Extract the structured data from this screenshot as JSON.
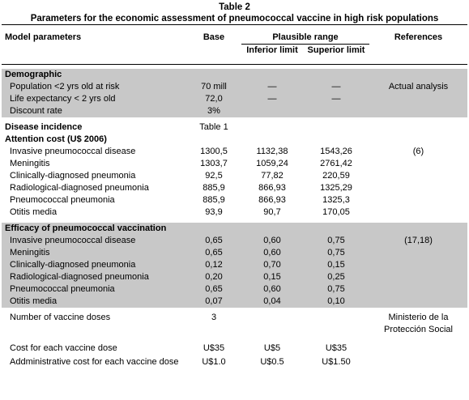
{
  "caption": {
    "number": "Table 2",
    "title": "Parameters for the economic assessment of pneumococcal vaccine in high risk populations"
  },
  "table": {
    "header": [
      "Model parameters",
      "Base",
      "Plausible range",
      "References"
    ],
    "subheader": [
      "Inferior limit",
      "Superior limit"
    ],
    "blocks": [
      {
        "shaded": true,
        "rows": [
          {
            "heading": true,
            "cells": [
              "Demographic",
              null,
              null,
              null,
              null
            ]
          },
          {
            "cells": [
              "Population <2 yrs old at risk",
              "70 mill",
              "—",
              "—",
              "Actual analysis"
            ]
          },
          {
            "cells": [
              "Life expectancy < 2 yrs old",
              "72,0",
              "—",
              "—",
              null
            ]
          },
          {
            "cells": [
              "Discount rate",
              "3%",
              null,
              null,
              null
            ]
          }
        ]
      },
      {
        "shaded": false,
        "rows": [
          {
            "heading": true,
            "cells": [
              "Disease incidence",
              "Table 1",
              null,
              null,
              null
            ]
          },
          {
            "heading": true,
            "cells": [
              "Attention cost (U$ 2006)",
              null,
              null,
              null,
              null
            ]
          },
          {
            "cells": [
              "Invasive pneumococcal disease",
              "1300,5",
              "1132,38",
              "1543,26",
              "(6)"
            ]
          },
          {
            "cells": [
              "Meningitis",
              "1303,7",
              "1059,24",
              "2761,42",
              null
            ]
          },
          {
            "cells": [
              "Clinically-diagnosed pneumonia",
              "92,5",
              "77,82",
              "220,59",
              null
            ]
          },
          {
            "cells": [
              "Radiological-diagnosed pneumonia",
              "885,9",
              "866,93",
              "1325,29",
              null
            ]
          },
          {
            "cells": [
              "Pneumococcal pneumonia",
              "885,9",
              "866,93",
              "1325,3",
              null
            ]
          },
          {
            "cells": [
              "Otitis media",
              "93,9",
              "90,7",
              "170,05",
              null
            ]
          }
        ]
      },
      {
        "shaded": true,
        "rows": [
          {
            "heading": true,
            "cells": [
              "Efficacy of pneumococcal vaccination",
              null,
              null,
              null,
              null
            ]
          },
          {
            "cells": [
              "Invasive pneumococcal disease",
              "0,65",
              "0,60",
              "0,75",
              "(17,18)"
            ]
          },
          {
            "cells": [
              "Meningitis",
              "0,65",
              "0,60",
              "0,75",
              null
            ]
          },
          {
            "cells": [
              "Clinically-diagnosed pneumonia",
              "0,12",
              "0,70",
              "0,15",
              null
            ]
          },
          {
            "cells": [
              "Radiological-diagnosed pneumonia",
              "0,20",
              "0,15",
              "0,25",
              null
            ]
          },
          {
            "cells": [
              "Pneumococcal pneumonia",
              "0,65",
              "0,60",
              "0,75",
              null
            ]
          },
          {
            "cells": [
              "Otitis media",
              "0,07",
              "0,04",
              "0,10",
              null
            ]
          }
        ]
      },
      {
        "shaded": false,
        "rows": [
          {
            "cells": [
              "Number of vaccine doses",
              "3",
              null,
              null,
              "Ministerio de la Protección Social"
            ]
          },
          {
            "cells": [
              "Cost for each vaccine dose",
              "U$35",
              "U$5",
              "U$35",
              null
            ]
          },
          {
            "cells": [
              "Addministrative cost for each vaccine dose",
              "U$1.0",
              "U$0.5",
              "U$1.50",
              null
            ]
          }
        ]
      }
    ]
  }
}
